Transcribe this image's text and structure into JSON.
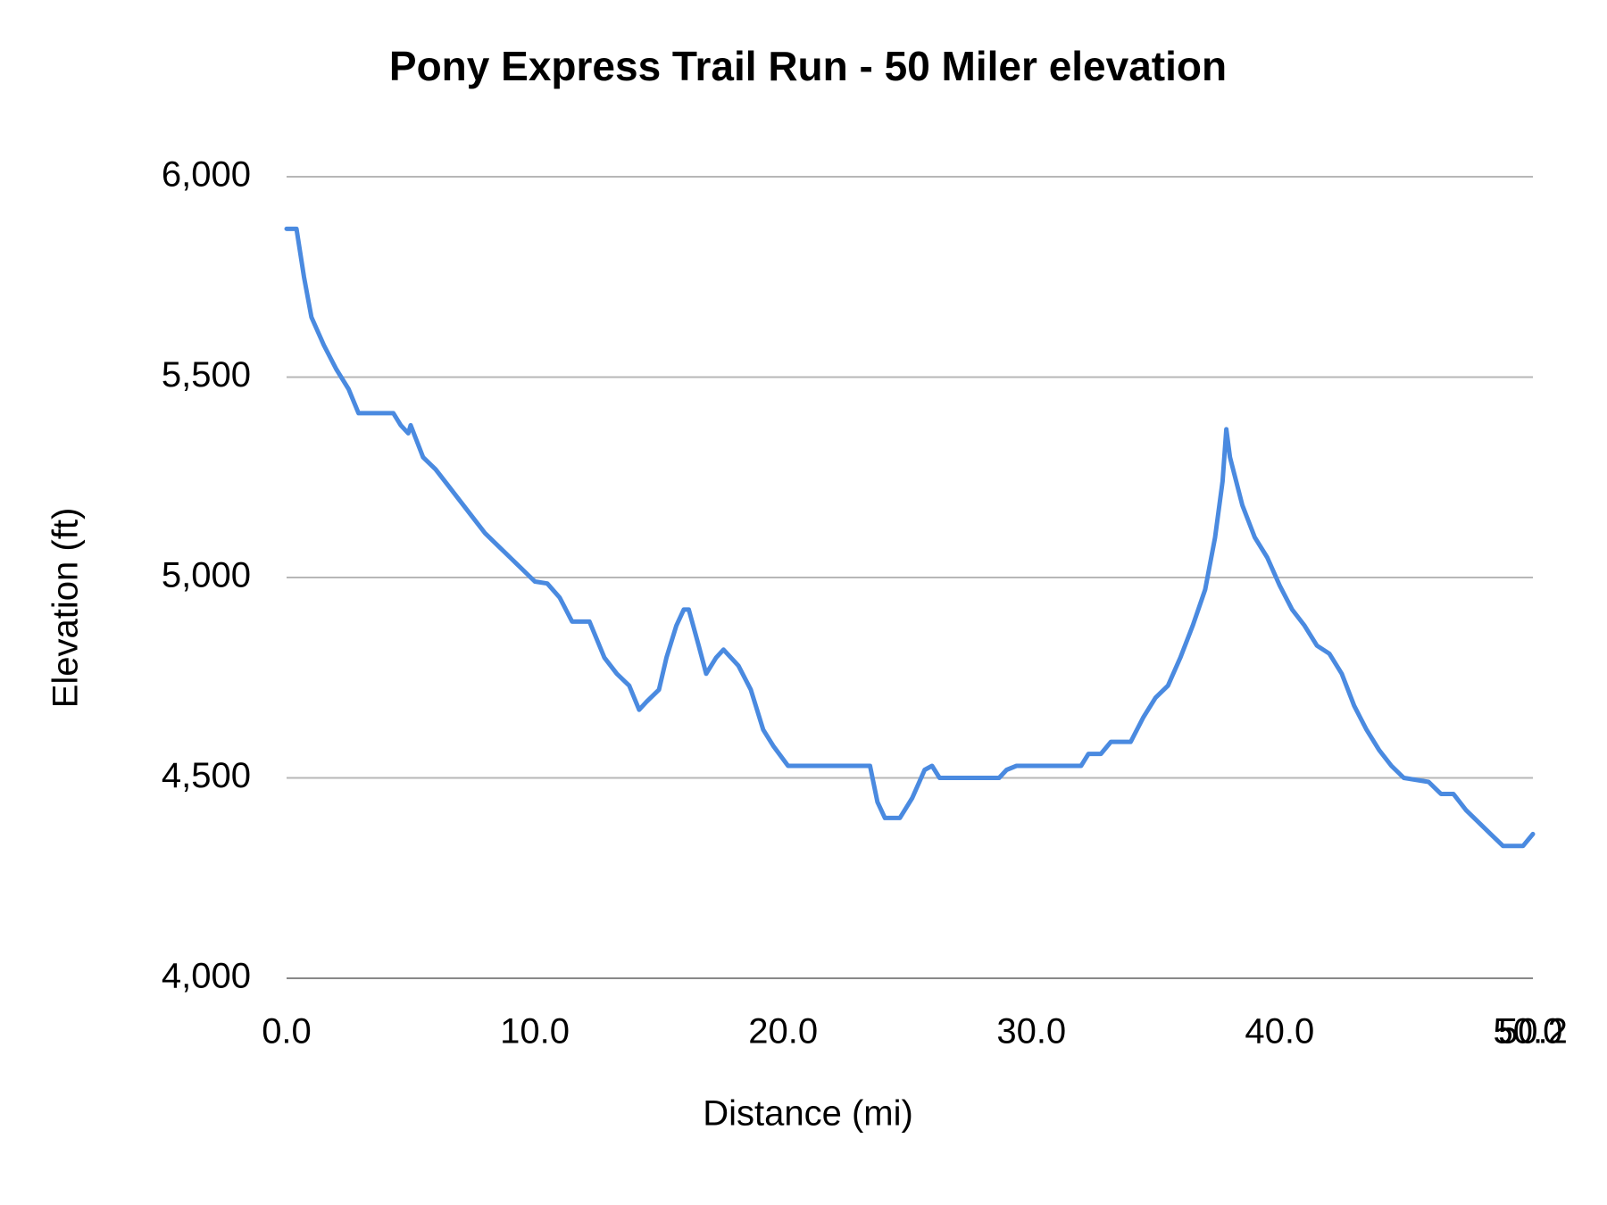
{
  "chart_data": {
    "type": "line",
    "title": "Pony Express Trail Run - 50 Miler elevation",
    "x_label": "Distance (mi)",
    "y_label": "Elevation (ft)",
    "color": "#4a8ae0",
    "grid": true,
    "xlim": [
      0,
      50.2
    ],
    "ylim": [
      4000,
      6000
    ],
    "xticks": [
      {
        "value": 0,
        "label": "0.0"
      },
      {
        "value": 10,
        "label": "10.0"
      },
      {
        "value": 20,
        "label": "20.0"
      },
      {
        "value": 30,
        "label": "30.0"
      },
      {
        "value": 40,
        "label": "40.0"
      },
      {
        "value": 50,
        "label": "50.0"
      },
      {
        "value": 50.2,
        "label": "50.2"
      }
    ],
    "yticks": [
      {
        "value": 4000,
        "label": "4,000"
      },
      {
        "value": 4500,
        "label": "4,500"
      },
      {
        "value": 5000,
        "label": "5,000"
      },
      {
        "value": 5500,
        "label": "5,500"
      },
      {
        "value": 6000,
        "label": "6,000"
      }
    ],
    "x": [
      0,
      0.4,
      0.7,
      1.0,
      1.5,
      2.0,
      2.5,
      2.9,
      4.3,
      4.6,
      4.9,
      5.0,
      5.5,
      6.0,
      6.5,
      7.0,
      7.5,
      8.0,
      8.5,
      9.0,
      9.5,
      10.0,
      10.5,
      11.0,
      11.5,
      12.2,
      12.8,
      13.3,
      13.8,
      14.2,
      14.5,
      15.0,
      15.3,
      15.7,
      16.0,
      16.2,
      16.6,
      16.9,
      17.3,
      17.6,
      18.2,
      18.7,
      19.2,
      19.6,
      20.2,
      23.5,
      23.8,
      24.1,
      24.7,
      25.2,
      25.7,
      26.0,
      26.3,
      28.7,
      29.0,
      29.4,
      32.0,
      32.3,
      32.8,
      33.2,
      34.0,
      34.5,
      35.0,
      35.5,
      36.0,
      36.5,
      37.0,
      37.4,
      37.7,
      37.85,
      38.0,
      38.5,
      39.0,
      39.5,
      40.0,
      40.5,
      41.0,
      41.5,
      42.0,
      42.5,
      43.0,
      43.5,
      44.0,
      44.5,
      45.0,
      46.0,
      46.5,
      47.0,
      47.5,
      48.0,
      48.5,
      49.0,
      49.8,
      50.2
    ],
    "values": [
      5870,
      5870,
      5750,
      5650,
      5580,
      5520,
      5470,
      5410,
      5410,
      5380,
      5360,
      5380,
      5300,
      5270,
      5230,
      5190,
      5150,
      5110,
      5080,
      5050,
      5020,
      4990,
      4985,
      4950,
      4890,
      4890,
      4800,
      4760,
      4730,
      4670,
      4690,
      4720,
      4800,
      4880,
      4920,
      4920,
      4830,
      4760,
      4800,
      4820,
      4780,
      4720,
      4620,
      4580,
      4530,
      4530,
      4440,
      4400,
      4400,
      4450,
      4520,
      4530,
      4500,
      4500,
      4520,
      4530,
      4530,
      4560,
      4560,
      4590,
      4590,
      4650,
      4700,
      4730,
      4800,
      4880,
      4970,
      5100,
      5240,
      5370,
      5300,
      5180,
      5100,
      5050,
      4980,
      4920,
      4880,
      4830,
      4810,
      4760,
      4680,
      4620,
      4570,
      4530,
      4500,
      4490,
      4460,
      4460,
      4420,
      4390,
      4360,
      4330,
      4330,
      4360
    ]
  }
}
